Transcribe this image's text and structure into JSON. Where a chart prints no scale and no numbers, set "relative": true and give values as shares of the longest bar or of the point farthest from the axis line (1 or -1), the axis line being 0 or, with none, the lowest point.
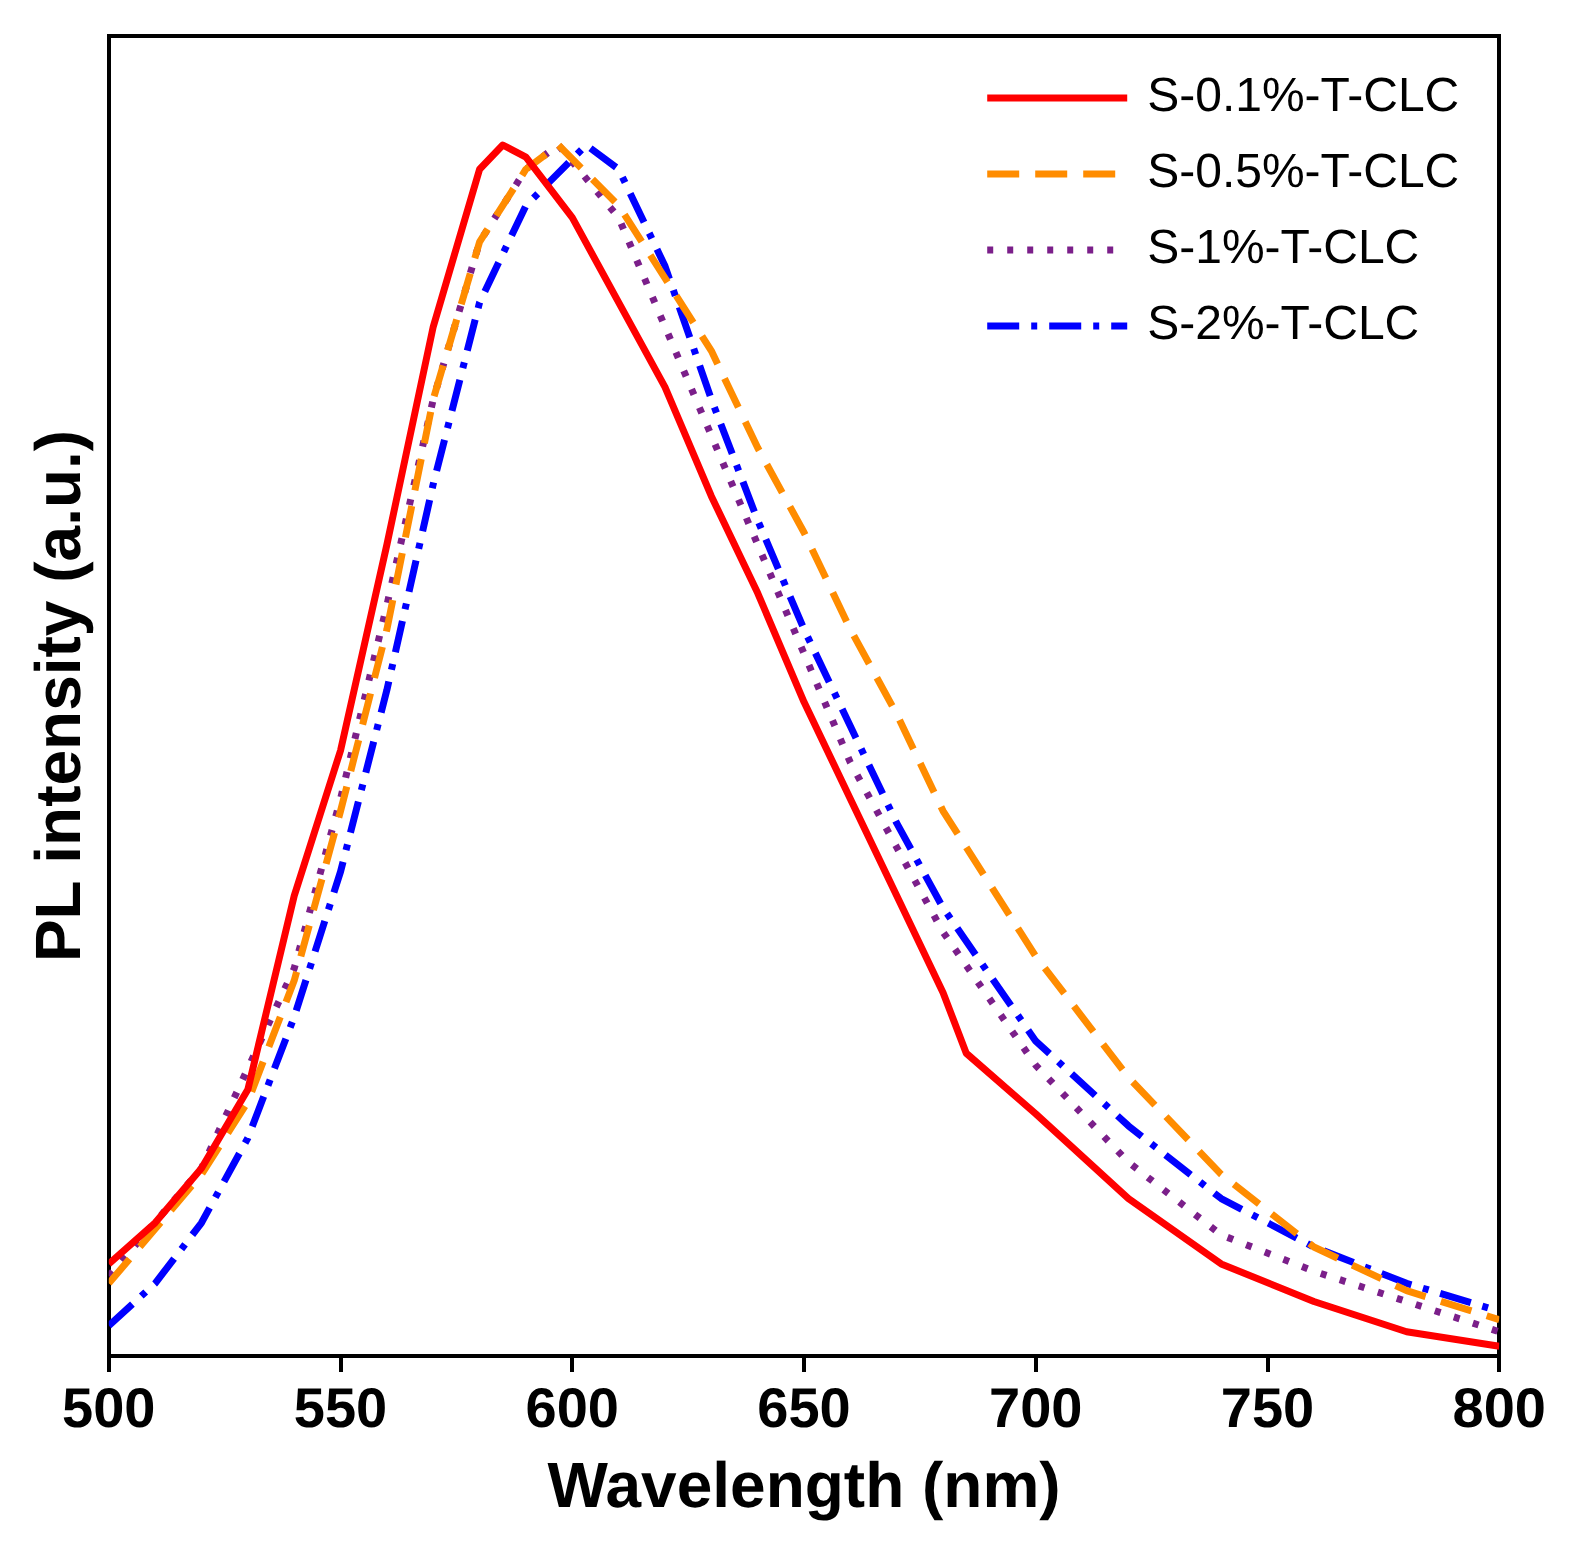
{
  "chart_data": {
    "type": "line",
    "relative": true,
    "xlabel": "Wavelength (nm)",
    "ylabel": "PL intensity (a.u.)",
    "xlim": [
      500,
      800
    ],
    "xticks": [
      500,
      550,
      600,
      650,
      700,
      750,
      800
    ],
    "grid": false,
    "legend": "top right",
    "marker": "none",
    "series": [
      {
        "name": "S-0.1%-T-CLC",
        "color": "#ff0000",
        "line_style": "solid",
        "x": [
          500,
          510,
          520,
          530,
          540,
          550,
          560,
          570,
          580,
          585,
          590,
          600,
          610,
          620,
          630,
          640,
          650,
          660,
          670,
          680,
          685,
          700,
          720,
          740,
          760,
          780,
          800
        ],
        "values": [
          0.076,
          0.11,
          0.155,
          0.22,
          0.38,
          0.5,
          0.67,
          0.85,
          0.98,
          1,
          0.99,
          0.94,
          0.87,
          0.8,
          0.71,
          0.63,
          0.54,
          0.46,
          0.38,
          0.3,
          0.25,
          0.2,
          0.13,
          0.076,
          0.045,
          0.02,
          0.008
        ]
      },
      {
        "name": "S-0.5%-T-CLC",
        "color": "#ff8c00",
        "line_style": "dashed",
        "x": [
          500,
          520,
          530,
          540,
          550,
          560,
          570,
          580,
          590,
          597,
          610,
          620,
          630,
          640,
          650,
          660,
          670,
          680,
          700,
          720,
          740,
          760,
          780,
          800
        ],
        "values": [
          0.06,
          0.15,
          0.21,
          0.31,
          0.45,
          0.6,
          0.79,
          0.92,
          0.98,
          1,
          0.95,
          0.89,
          0.83,
          0.75,
          0.68,
          0.6,
          0.53,
          0.45,
          0.33,
          0.23,
          0.15,
          0.09,
          0.054,
          0.03
        ]
      },
      {
        "name": "S-1%-T-CLC",
        "color": "#7b1f8a",
        "line_style": "dotted",
        "x": [
          500,
          520,
          540,
          550,
          560,
          570,
          580,
          590,
          597,
          610,
          620,
          630,
          640,
          650,
          660,
          670,
          680,
          700,
          720,
          740,
          760,
          780,
          800
        ],
        "values": [
          0.066,
          0.155,
          0.32,
          0.46,
          0.62,
          0.79,
          0.92,
          0.98,
          1,
          0.94,
          0.85,
          0.76,
          0.67,
          0.58,
          0.49,
          0.42,
          0.35,
          0.24,
          0.16,
          0.1,
          0.07,
          0.045,
          0.02
        ]
      },
      {
        "name": "S-2%-T-CLC",
        "color": "#0000ff",
        "line_style": "dashdot",
        "x": [
          500,
          510,
          520,
          530,
          540,
          550,
          560,
          570,
          580,
          590,
          603,
          610,
          620,
          630,
          640,
          650,
          660,
          670,
          680,
          700,
          720,
          740,
          760,
          780,
          800
        ],
        "values": [
          0.025,
          0.06,
          0.11,
          0.18,
          0.28,
          0.4,
          0.55,
          0.72,
          0.87,
          0.95,
          1,
          0.98,
          0.9,
          0.79,
          0.69,
          0.6,
          0.52,
          0.44,
          0.37,
          0.26,
          0.19,
          0.13,
          0.09,
          0.06,
          0.037
        ]
      }
    ]
  }
}
